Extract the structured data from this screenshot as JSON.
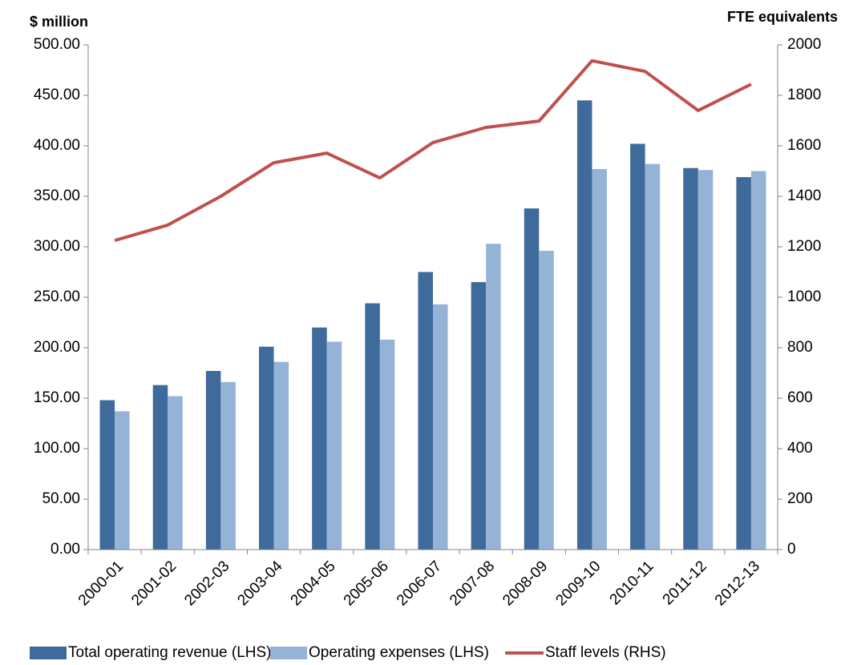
{
  "chart_data": {
    "type": "bar",
    "y_label": "$ million",
    "y2_label": "FTE equivalents",
    "categories": [
      "2000-01",
      "2001-02",
      "2002-03",
      "2003-04",
      "2004-05",
      "2005-06",
      "2006-07",
      "2007-08",
      "2008-09",
      "2009-10",
      "2010-11",
      "2011-12",
      "2012-13"
    ],
    "series": [
      {
        "name": "Total operating revenue (LHS)",
        "type": "bar",
        "color": "#3f6a9c",
        "values": [
          148,
          163,
          177,
          201,
          220,
          244,
          275,
          265,
          338,
          445,
          402,
          378,
          369
        ]
      },
      {
        "name": "Operating expenses (LHS)",
        "type": "bar",
        "color": "#95b3d7",
        "values": [
          137,
          152,
          166,
          186,
          206,
          208,
          243,
          303,
          296,
          377,
          382,
          376,
          375
        ]
      },
      {
        "name": "Staff levels (RHS)",
        "type": "line",
        "axis": "y2",
        "color": "#c0504d",
        "values": [
          1225,
          1286,
          1400,
          1533,
          1571,
          1473,
          1613,
          1673,
          1698,
          1937,
          1895,
          1740,
          1844
        ]
      }
    ],
    "ylim": [
      0,
      500
    ],
    "yticks": [
      {
        "value": 0,
        "label": "0.00"
      },
      {
        "value": 50,
        "label": "50.00"
      },
      {
        "value": 100,
        "label": "100.00"
      },
      {
        "value": 150,
        "label": "150.00"
      },
      {
        "value": 200,
        "label": "200.00"
      },
      {
        "value": 250,
        "label": "250.00"
      },
      {
        "value": 300,
        "label": "300.00"
      },
      {
        "value": 350,
        "label": "350.00"
      },
      {
        "value": 400,
        "label": "400.00"
      },
      {
        "value": 450,
        "label": "450.00"
      },
      {
        "value": 500,
        "label": "500.00"
      }
    ],
    "y2lim": [
      0,
      2000
    ],
    "y2ticks": [
      0,
      200,
      400,
      600,
      800,
      1000,
      1200,
      1400,
      1600,
      1800,
      2000
    ],
    "legend": "bottom"
  }
}
